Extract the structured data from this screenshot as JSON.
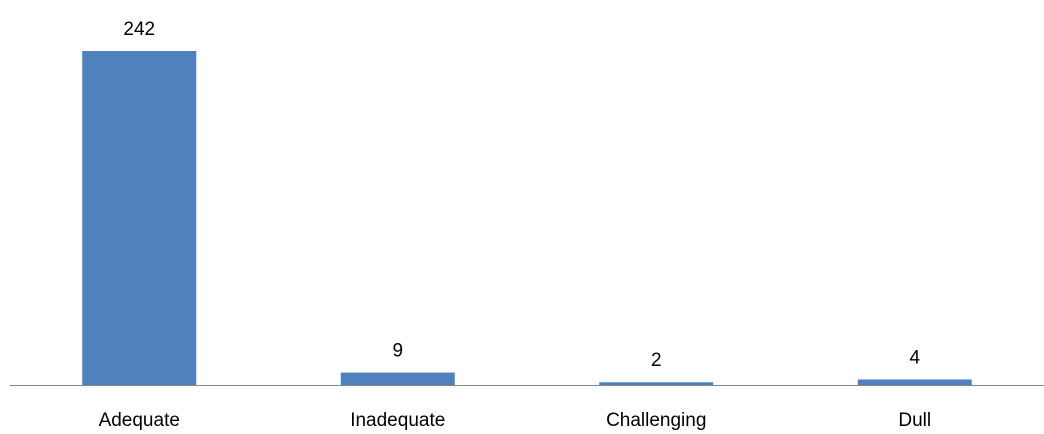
{
  "chart_data": {
    "type": "bar",
    "categories": [
      "Adequate",
      "Inadequate",
      "Challenging",
      "Dull"
    ],
    "values": [
      242,
      9,
      2,
      4
    ],
    "data_labels": [
      "242",
      "9",
      "2",
      "4"
    ],
    "title": "",
    "xlabel": "",
    "ylabel": "",
    "ylim": [
      0,
      242
    ],
    "grid": false,
    "legend": "none",
    "bar_color": "#4f81bd",
    "axis_color": "#868686"
  }
}
